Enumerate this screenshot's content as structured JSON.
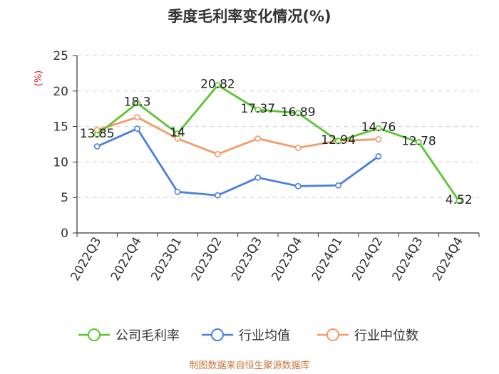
{
  "chart_data": {
    "type": "line",
    "title": "季度毛利率变化情况(%)",
    "ylabel": "(%)",
    "ylim": [
      0,
      25
    ],
    "yticks": [
      0,
      5,
      10,
      15,
      20,
      25
    ],
    "categories": [
      "2022Q3",
      "2022Q4",
      "2023Q1",
      "2023Q2",
      "2023Q3",
      "2023Q4",
      "2024Q1",
      "2024Q2",
      "2024Q3",
      "2024Q4"
    ],
    "series": [
      {
        "name": "公司毛利率",
        "color": "#5ac52e",
        "values": [
          13.85,
          18.3,
          14,
          20.82,
          17.37,
          16.89,
          12.94,
          14.76,
          12.78,
          4.52
        ],
        "labels": [
          "13.85",
          "18.3",
          "14",
          "20.82",
          "17.37",
          "16.89",
          "12.94",
          "14.76",
          "12.78",
          "4.52"
        ]
      },
      {
        "name": "行业均值",
        "color": "#4a7fe0",
        "values": [
          12.2,
          14.7,
          5.8,
          5.3,
          7.8,
          6.6,
          6.7,
          10.8,
          null,
          null
        ]
      },
      {
        "name": "行业中位数",
        "color": "#f59a6a",
        "values": [
          14.5,
          16.3,
          13.3,
          11.1,
          13.3,
          12.0,
          13.0,
          13.2,
          null,
          null
        ]
      }
    ],
    "grid": true,
    "legend_position": "bottom"
  },
  "source_text": "制图数据来自恒生聚源数据库"
}
